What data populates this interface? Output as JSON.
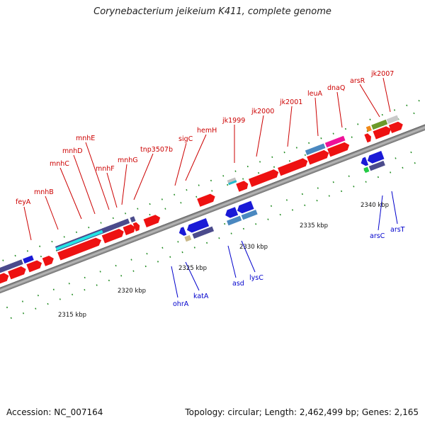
{
  "title": "Corynebacterium jeikeium K411, complete genome",
  "footer": {
    "accession": "Accession: NC_007164",
    "summary": "Topology: circular; Length: 2,462,499 bp; Genes: 2,165"
  },
  "kbp_labels": [
    "2315 kbp",
    "2320 kbp",
    "2325 kbp",
    "2330 kbp",
    "2335 kbp",
    "2340 kbp"
  ],
  "gene_labels_top": [
    "feyA",
    "mnhB",
    "mnhC",
    "mnhD",
    "mnhE",
    "mnhF",
    "mnhG",
    "tnp3507b",
    "sigC",
    "hemH",
    "jk1999",
    "jk2000",
    "jk2001",
    "leuA",
    "dnaQ",
    "arsR",
    "jk2007"
  ],
  "gene_labels_bottom": [
    "ohrA",
    "katA",
    "asd",
    "lysC",
    "arsC",
    "arsT"
  ],
  "colors": {
    "top_label": "#cc0000",
    "bottom_label": "#0000cc",
    "backbone": "#8c8c8c",
    "tick": "#1f8a1f"
  }
}
